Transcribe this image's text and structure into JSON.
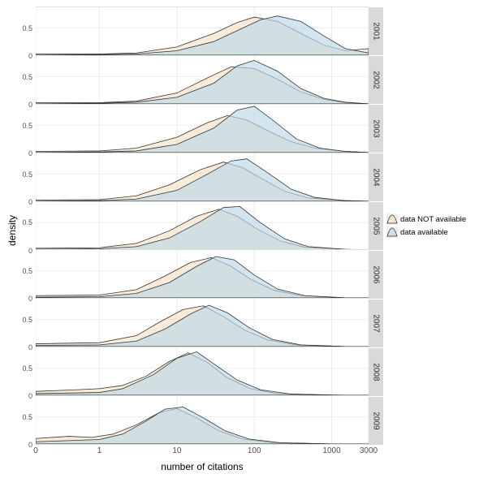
{
  "chart": {
    "type": "faceted-density",
    "background_color": "#ffffff",
    "grid_color": "#ebebeb",
    "panel_border_color": "#dddddd",
    "strip_background": "#d9d9d9",
    "text_color": "#000000",
    "axis_text_color": "#4d4d4d",
    "x_axis_title": "number of citations",
    "y_axis_title": "density",
    "x_scale": "log",
    "x_ticks": [
      {
        "value": 0.15,
        "label": "0"
      },
      {
        "value": 1,
        "label": "1"
      },
      {
        "value": 10,
        "label": "10"
      },
      {
        "value": 100,
        "label": "100"
      },
      {
        "value": 1000,
        "label": "1000"
      },
      {
        "value": 3000,
        "label": "3000"
      }
    ],
    "xlim_log": [
      -0.824,
      3.477
    ],
    "y_ticks": [
      0,
      0.5
    ],
    "ylim": [
      0,
      0.88
    ],
    "title_fontsize": 12,
    "axis_label_fontsize": 10,
    "strip_fontsize": 10,
    "series": [
      {
        "key": "not_available",
        "label": "data NOT available",
        "fill": "#f5e0c4",
        "fill_opacity": 0.65,
        "stroke": "#333333"
      },
      {
        "key": "available",
        "label": "data available",
        "fill": "#bcd7e6",
        "fill_opacity": 0.65,
        "stroke": "#333333"
      }
    ],
    "facets": [
      {
        "year": "2001",
        "curves": {
          "not_available": [
            [
              0.15,
              0.02
            ],
            [
              1,
              0.02
            ],
            [
              3,
              0.04
            ],
            [
              10,
              0.15
            ],
            [
              30,
              0.4
            ],
            [
              60,
              0.6
            ],
            [
              100,
              0.7
            ],
            [
              200,
              0.62
            ],
            [
              400,
              0.4
            ],
            [
              800,
              0.18
            ],
            [
              1500,
              0.08
            ],
            [
              3000,
              0.12
            ]
          ],
          "available": [
            [
              0.15,
              0.0
            ],
            [
              1,
              0.01
            ],
            [
              3,
              0.02
            ],
            [
              10,
              0.08
            ],
            [
              30,
              0.25
            ],
            [
              60,
              0.45
            ],
            [
              120,
              0.65
            ],
            [
              200,
              0.72
            ],
            [
              400,
              0.62
            ],
            [
              800,
              0.35
            ],
            [
              1500,
              0.12
            ],
            [
              3000,
              0.04
            ]
          ]
        }
      },
      {
        "year": "2002",
        "curves": {
          "not_available": [
            [
              0.15,
              0.02
            ],
            [
              1,
              0.02
            ],
            [
              3,
              0.05
            ],
            [
              10,
              0.2
            ],
            [
              25,
              0.48
            ],
            [
              50,
              0.68
            ],
            [
              100,
              0.65
            ],
            [
              200,
              0.45
            ],
            [
              400,
              0.22
            ],
            [
              800,
              0.08
            ],
            [
              1500,
              0.02
            ],
            [
              3000,
              0.0
            ]
          ],
          "available": [
            [
              0.15,
              0.0
            ],
            [
              1,
              0.01
            ],
            [
              3,
              0.03
            ],
            [
              10,
              0.12
            ],
            [
              30,
              0.38
            ],
            [
              60,
              0.7
            ],
            [
              100,
              0.8
            ],
            [
              200,
              0.6
            ],
            [
              400,
              0.28
            ],
            [
              800,
              0.1
            ],
            [
              1500,
              0.03
            ],
            [
              3000,
              0.0
            ]
          ]
        }
      },
      {
        "year": "2003",
        "curves": {
          "not_available": [
            [
              0.15,
              0.02
            ],
            [
              1,
              0.03
            ],
            [
              3,
              0.08
            ],
            [
              10,
              0.28
            ],
            [
              25,
              0.55
            ],
            [
              45,
              0.68
            ],
            [
              80,
              0.6
            ],
            [
              150,
              0.4
            ],
            [
              300,
              0.2
            ],
            [
              600,
              0.08
            ],
            [
              1500,
              0.02
            ],
            [
              3000,
              0.0
            ]
          ],
          "available": [
            [
              0.15,
              0.0
            ],
            [
              1,
              0.01
            ],
            [
              3,
              0.03
            ],
            [
              10,
              0.15
            ],
            [
              30,
              0.45
            ],
            [
              60,
              0.78
            ],
            [
              100,
              0.85
            ],
            [
              180,
              0.58
            ],
            [
              350,
              0.25
            ],
            [
              700,
              0.08
            ],
            [
              1500,
              0.02
            ],
            [
              3000,
              0.0
            ]
          ]
        }
      },
      {
        "year": "2004",
        "curves": {
          "not_available": [
            [
              0.15,
              0.02
            ],
            [
              1,
              0.03
            ],
            [
              3,
              0.1
            ],
            [
              8,
              0.3
            ],
            [
              20,
              0.58
            ],
            [
              40,
              0.72
            ],
            [
              70,
              0.62
            ],
            [
              130,
              0.4
            ],
            [
              250,
              0.18
            ],
            [
              500,
              0.06
            ],
            [
              1500,
              0.01
            ],
            [
              3000,
              0.0
            ]
          ],
          "available": [
            [
              0.15,
              0.0
            ],
            [
              1,
              0.01
            ],
            [
              3,
              0.04
            ],
            [
              10,
              0.2
            ],
            [
              25,
              0.5
            ],
            [
              50,
              0.74
            ],
            [
              80,
              0.78
            ],
            [
              150,
              0.52
            ],
            [
              300,
              0.22
            ],
            [
              600,
              0.07
            ],
            [
              1500,
              0.01
            ],
            [
              3000,
              0.0
            ]
          ]
        }
      },
      {
        "year": "2005",
        "curves": {
          "not_available": [
            [
              0.15,
              0.03
            ],
            [
              1,
              0.04
            ],
            [
              3,
              0.12
            ],
            [
              8,
              0.35
            ],
            [
              18,
              0.62
            ],
            [
              35,
              0.75
            ],
            [
              60,
              0.62
            ],
            [
              110,
              0.38
            ],
            [
              220,
              0.16
            ],
            [
              450,
              0.05
            ],
            [
              1500,
              0.01
            ],
            [
              3000,
              0.0
            ]
          ],
          "available": [
            [
              0.15,
              0.01
            ],
            [
              1,
              0.02
            ],
            [
              3,
              0.06
            ],
            [
              8,
              0.22
            ],
            [
              20,
              0.52
            ],
            [
              40,
              0.78
            ],
            [
              65,
              0.8
            ],
            [
              120,
              0.5
            ],
            [
              250,
              0.2
            ],
            [
              500,
              0.06
            ],
            [
              1500,
              0.01
            ],
            [
              3000,
              0.0
            ]
          ]
        }
      },
      {
        "year": "2006",
        "curves": {
          "not_available": [
            [
              0.15,
              0.04
            ],
            [
              1,
              0.05
            ],
            [
              3,
              0.15
            ],
            [
              7,
              0.4
            ],
            [
              15,
              0.65
            ],
            [
              28,
              0.74
            ],
            [
              50,
              0.58
            ],
            [
              90,
              0.34
            ],
            [
              180,
              0.14
            ],
            [
              400,
              0.04
            ],
            [
              1500,
              0.0
            ],
            [
              3000,
              0.0
            ]
          ],
          "available": [
            [
              0.15,
              0.01
            ],
            [
              1,
              0.02
            ],
            [
              3,
              0.08
            ],
            [
              8,
              0.28
            ],
            [
              18,
              0.58
            ],
            [
              32,
              0.76
            ],
            [
              55,
              0.7
            ],
            [
              100,
              0.42
            ],
            [
              200,
              0.16
            ],
            [
              450,
              0.04
            ],
            [
              1500,
              0.0
            ],
            [
              3000,
              0.0
            ]
          ]
        }
      },
      {
        "year": "2007",
        "curves": {
          "not_available": [
            [
              0.15,
              0.05
            ],
            [
              1,
              0.07
            ],
            [
              3,
              0.2
            ],
            [
              6,
              0.45
            ],
            [
              12,
              0.68
            ],
            [
              22,
              0.75
            ],
            [
              40,
              0.55
            ],
            [
              75,
              0.3
            ],
            [
              150,
              0.12
            ],
            [
              350,
              0.03
            ],
            [
              1500,
              0.0
            ],
            [
              3000,
              0.0
            ]
          ],
          "available": [
            [
              0.15,
              0.02
            ],
            [
              1,
              0.03
            ],
            [
              3,
              0.1
            ],
            [
              7,
              0.32
            ],
            [
              15,
              0.6
            ],
            [
              26,
              0.76
            ],
            [
              45,
              0.62
            ],
            [
              85,
              0.35
            ],
            [
              170,
              0.13
            ],
            [
              400,
              0.03
            ],
            [
              1500,
              0.0
            ],
            [
              3000,
              0.0
            ]
          ]
        }
      },
      {
        "year": "2008",
        "curves": {
          "not_available": [
            [
              0.15,
              0.07
            ],
            [
              0.5,
              0.1
            ],
            [
              1,
              0.12
            ],
            [
              2,
              0.18
            ],
            [
              4,
              0.35
            ],
            [
              8,
              0.62
            ],
            [
              14,
              0.78
            ],
            [
              25,
              0.6
            ],
            [
              45,
              0.32
            ],
            [
              90,
              0.12
            ],
            [
              200,
              0.03
            ],
            [
              1000,
              0.0
            ],
            [
              3000,
              0.0
            ]
          ],
          "available": [
            [
              0.15,
              0.03
            ],
            [
              1,
              0.05
            ],
            [
              2,
              0.12
            ],
            [
              5,
              0.38
            ],
            [
              10,
              0.68
            ],
            [
              18,
              0.8
            ],
            [
              32,
              0.55
            ],
            [
              60,
              0.28
            ],
            [
              120,
              0.1
            ],
            [
              300,
              0.02
            ],
            [
              1500,
              0.0
            ],
            [
              3000,
              0.0
            ]
          ]
        }
      },
      {
        "year": "2009",
        "curves": {
          "not_available": [
            [
              0.15,
              0.1
            ],
            [
              0.4,
              0.14
            ],
            [
              0.8,
              0.12
            ],
            [
              1.5,
              0.18
            ],
            [
              3,
              0.35
            ],
            [
              6,
              0.58
            ],
            [
              10,
              0.65
            ],
            [
              18,
              0.48
            ],
            [
              35,
              0.24
            ],
            [
              70,
              0.09
            ],
            [
              180,
              0.02
            ],
            [
              1000,
              0.0
            ],
            [
              3000,
              0.0
            ]
          ],
          "available": [
            [
              0.15,
              0.04
            ],
            [
              1,
              0.08
            ],
            [
              2,
              0.18
            ],
            [
              4,
              0.42
            ],
            [
              7,
              0.64
            ],
            [
              12,
              0.68
            ],
            [
              22,
              0.48
            ],
            [
              42,
              0.24
            ],
            [
              85,
              0.09
            ],
            [
              220,
              0.02
            ],
            [
              1000,
              0.0
            ],
            [
              3000,
              0.0
            ]
          ]
        }
      }
    ],
    "legend_position": "right",
    "aspect_height_per_facet": 60
  }
}
